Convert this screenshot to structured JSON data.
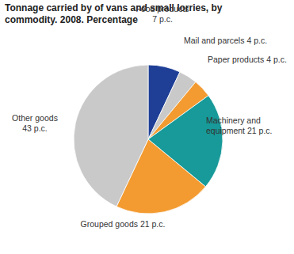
{
  "chart_data": {
    "type": "pie",
    "title": "Tonnage carried by of vans and small lorries, by commodity. 2008. Percentage",
    "categories": [
      "Food products",
      "Mail and parcels",
      "Paper products",
      "Machinery and equipment",
      "Grouped goods",
      "Other goods"
    ],
    "values": [
      7,
      4,
      4,
      21,
      21,
      43
    ],
    "value_labels": [
      "7 p.c.",
      "4 p.c.",
      "4 p.c.",
      "21 p.c.",
      "21 p.c.",
      "43 p.c."
    ],
    "colors": [
      "#1f3f97",
      "#c9c9c9",
      "#f39b31",
      "#179a99",
      "#f39b31",
      "#c9c9c9"
    ],
    "data_labels": true
  }
}
